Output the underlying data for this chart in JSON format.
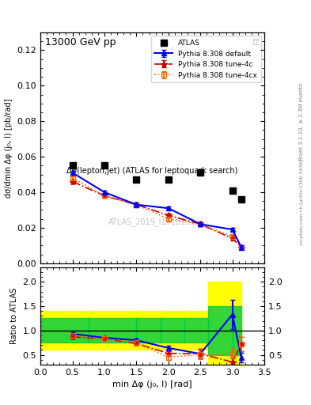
{
  "title_top": "13000 GeV pp",
  "title_top_right": "tt",
  "main_title": "Δφ(lepton,jet) (ATLAS for leptoquark search)",
  "watermark": "ATLAS_2019_I1718132",
  "xlabel": "min Δφ (j₀, l) [rad]",
  "ylabel_main": "dσ/dmin Δφ (j₀, l) [pb/rad]",
  "ylabel_ratio": "Ratio to ATLAS",
  "right_label": "Rivet 3.1.10, ≥ 2.3M events",
  "right_label2": "mcplots.cern.ch [arXiv:1306.3436]",
  "atlas_x": [
    0.5,
    1.0,
    1.5,
    2.0,
    2.5,
    3.0,
    3.14
  ],
  "atlas_y": [
    0.055,
    0.055,
    0.047,
    0.047,
    0.051,
    0.041,
    0.036
  ],
  "pythia_x": [
    0.5,
    1.0,
    1.5,
    2.0,
    2.5,
    3.0,
    3.14
  ],
  "pythia_default_y": [
    0.051,
    0.04,
    0.033,
    0.031,
    0.022,
    0.019,
    0.009
  ],
  "pythia_default_yerr": [
    0.001,
    0.001,
    0.001,
    0.001,
    0.001,
    0.001,
    0.001
  ],
  "pythia_4c_y": [
    0.046,
    0.038,
    0.033,
    0.027,
    0.022,
    0.014,
    0.009
  ],
  "pythia_4c_yerr": [
    0.001,
    0.001,
    0.001,
    0.001,
    0.001,
    0.001,
    0.001
  ],
  "pythia_4cx_y": [
    0.048,
    0.038,
    0.033,
    0.025,
    0.022,
    0.015,
    0.009
  ],
  "pythia_4cx_yerr": [
    0.001,
    0.001,
    0.001,
    0.001,
    0.001,
    0.001,
    0.001
  ],
  "ratio_default_y": [
    0.93,
    0.85,
    0.8,
    0.64,
    0.52,
    1.33,
    0.44
  ],
  "ratio_default_yerr": [
    0.03,
    0.03,
    0.03,
    0.05,
    0.1,
    0.3,
    0.1
  ],
  "ratio_4c_y": [
    0.87,
    0.83,
    0.73,
    0.53,
    0.52,
    0.35,
    0.72
  ],
  "ratio_4c_yerr": [
    0.03,
    0.03,
    0.03,
    0.05,
    0.1,
    0.1,
    0.15
  ],
  "ratio_4cx_y": [
    0.9,
    0.83,
    0.75,
    0.45,
    0.51,
    0.52,
    0.72
  ],
  "ratio_4cx_yerr": [
    0.03,
    0.03,
    0.03,
    0.05,
    0.1,
    0.1,
    0.15
  ],
  "band_x_edges": [
    0.0,
    0.75,
    1.5,
    1.875,
    2.25,
    2.625,
    3.0,
    3.14159
  ],
  "band_green_lo": [
    0.75,
    0.75,
    0.75,
    0.75,
    0.75,
    0.5,
    0.5,
    0.5
  ],
  "band_green_hi": [
    1.25,
    1.25,
    1.25,
    1.25,
    1.25,
    1.5,
    1.5,
    1.5
  ],
  "band_yellow_lo": [
    0.6,
    0.6,
    0.6,
    0.6,
    0.6,
    0.25,
    0.25,
    0.25
  ],
  "band_yellow_hi": [
    1.4,
    1.4,
    1.4,
    1.4,
    1.4,
    2.0,
    2.0,
    2.0
  ],
  "color_default": "#0000ff",
  "color_4c": "#cc0000",
  "color_4cx": "#ff6600",
  "color_atlas": "#000000",
  "color_green": "#00cc44",
  "color_yellow": "#ffff00",
  "xlim": [
    0,
    3.5
  ],
  "ylim_main": [
    0,
    0.13
  ],
  "ylim_ratio": [
    0.3,
    2.3
  ],
  "ratio_yticks": [
    0.5,
    1.0,
    1.5,
    2.0
  ]
}
